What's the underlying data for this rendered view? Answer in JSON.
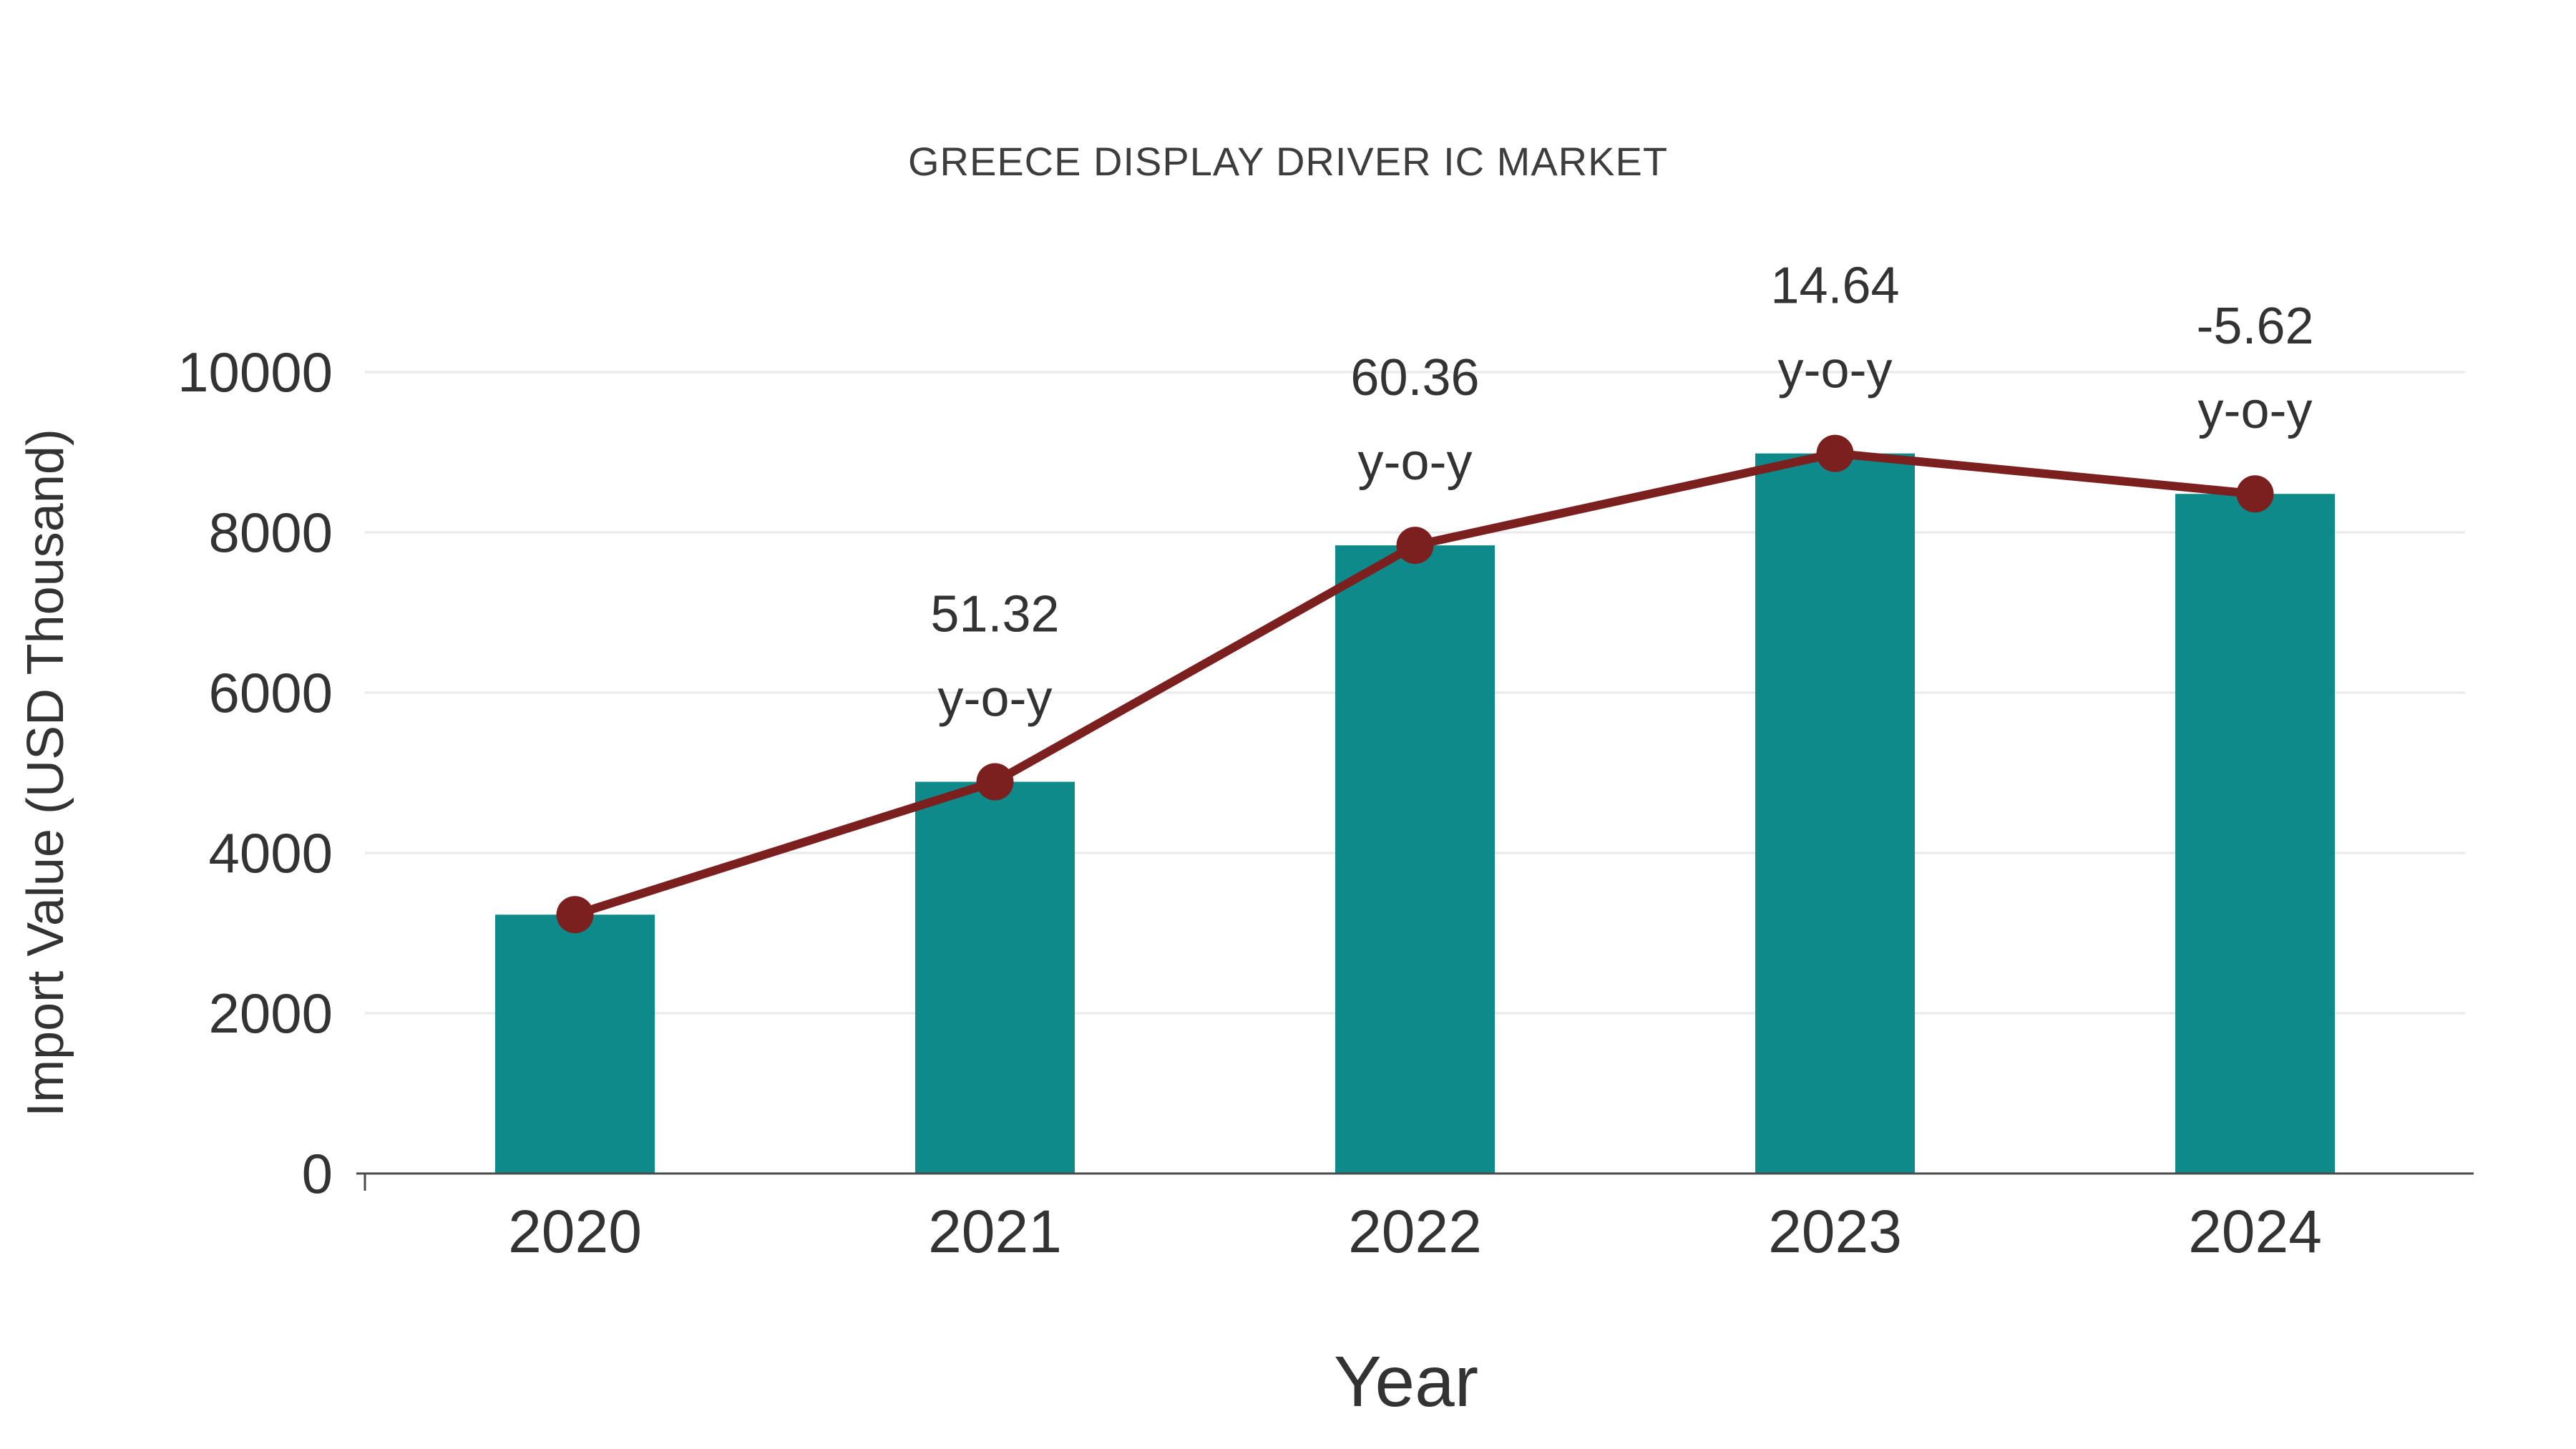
{
  "chart_data": {
    "type": "bar",
    "title": "GREECE DISPLAY DRIVER IC MARKET",
    "xlabel": "Year",
    "ylabel": "Import Value (USD Thousand)",
    "categories": [
      "2020",
      "2021",
      "2022",
      "2023",
      "2024"
    ],
    "series": [
      {
        "name": "Import Value (USD Thousand)",
        "type": "bar",
        "values": [
          3230,
          4888,
          7838,
          8985,
          8480
        ]
      },
      {
        "name": "y-o-y growth line",
        "type": "line",
        "values": [
          3230,
          4888,
          7838,
          8985,
          8480
        ]
      }
    ],
    "annotations": [
      null,
      {
        "value": "51.32",
        "suffix": "y-o-y"
      },
      {
        "value": "60.36",
        "suffix": "y-o-y"
      },
      {
        "value": "14.64",
        "suffix": "y-o-y"
      },
      {
        "value": "-5.62",
        "suffix": "y-o-y"
      }
    ],
    "ylim": [
      0,
      10000
    ],
    "ytick_step": 2000,
    "yticks": [
      0,
      2000,
      4000,
      6000,
      8000,
      10000
    ],
    "grid": "horizontal",
    "legend": "none",
    "colors": {
      "bar": "#0e8a8a",
      "line": "#7b1f1f",
      "marker": "#7b1f1f",
      "grid": "#e8e8e8",
      "axis": "#4a4a4a",
      "text": "#333333",
      "title": "#3d3d3d",
      "background": "#ffffff"
    }
  }
}
